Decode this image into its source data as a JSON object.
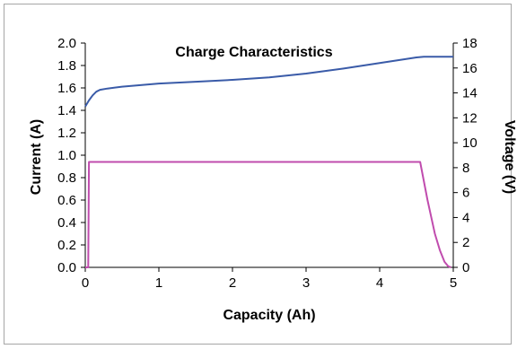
{
  "chart_data": {
    "type": "line",
    "title": "Charge Characteristics",
    "xlabel": "Capacity (Ah)",
    "ylabel": "Current (A)",
    "y2label": "Voltage (V)",
    "xlim": [
      0,
      5
    ],
    "ylim": [
      0,
      2.0
    ],
    "y2lim": [
      0,
      18
    ],
    "x_ticks": [
      "0",
      "1",
      "2",
      "3",
      "4",
      "5"
    ],
    "y_ticks": [
      "0.0",
      "0.2",
      "0.4",
      "0.6",
      "0.8",
      "1.0",
      "1.2",
      "1.4",
      "1.6",
      "1.8",
      "2.0"
    ],
    "y2_ticks": [
      "0",
      "2",
      "4",
      "6",
      "8",
      "10",
      "12",
      "14",
      "16",
      "18"
    ],
    "grid": false,
    "series": [
      {
        "axis": "right",
        "color": "#3a5ba8",
        "x": [
          0.0,
          0.05,
          0.1,
          0.15,
          0.2,
          0.3,
          0.5,
          1.0,
          1.5,
          2.0,
          2.5,
          3.0,
          3.5,
          4.0,
          4.5,
          4.6,
          5.0
        ],
        "values": [
          12.9,
          13.4,
          13.8,
          14.1,
          14.25,
          14.35,
          14.5,
          14.75,
          14.9,
          15.05,
          15.25,
          15.55,
          15.95,
          16.4,
          16.85,
          16.9,
          16.9
        ]
      },
      {
        "axis": "left",
        "color": "#c04cae",
        "x": [
          0.0,
          0.04,
          0.05,
          4.55,
          4.65,
          4.75,
          4.82,
          4.88,
          4.93,
          4.97
        ],
        "values": [
          0.0,
          0.0,
          0.94,
          0.94,
          0.6,
          0.3,
          0.15,
          0.05,
          0.01,
          0.0
        ]
      }
    ]
  }
}
